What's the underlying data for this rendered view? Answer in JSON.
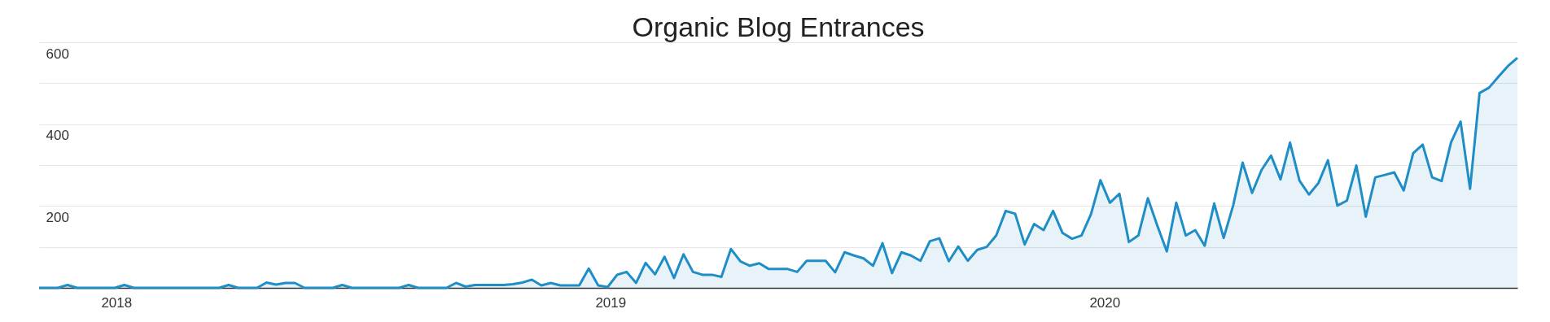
{
  "chart_data": {
    "type": "area",
    "title": "Organic Blog Entrances",
    "x": [
      "2017-11-05",
      "2017-11-12",
      "2017-11-19",
      "2017-11-26",
      "2017-12-03",
      "2017-12-10",
      "2017-12-17",
      "2017-12-24",
      "2017-12-31",
      "2018-01-07",
      "2018-01-14",
      "2018-01-21",
      "2018-01-28",
      "2018-02-04",
      "2018-02-11",
      "2018-02-18",
      "2018-02-25",
      "2018-03-04",
      "2018-03-11",
      "2018-03-18",
      "2018-03-25",
      "2018-04-01",
      "2018-04-08",
      "2018-04-15",
      "2018-04-22",
      "2018-04-29",
      "2018-05-06",
      "2018-05-13",
      "2018-05-20",
      "2018-05-27",
      "2018-06-03",
      "2018-06-10",
      "2018-06-17",
      "2018-06-24",
      "2018-07-01",
      "2018-07-08",
      "2018-07-15",
      "2018-07-22",
      "2018-07-29",
      "2018-08-05",
      "2018-08-12",
      "2018-08-19",
      "2018-08-26",
      "2018-09-02",
      "2018-09-09",
      "2018-09-16",
      "2018-09-23",
      "2018-09-30",
      "2018-10-07",
      "2018-10-14",
      "2018-10-21",
      "2018-10-28",
      "2018-11-04",
      "2018-11-11",
      "2018-11-18",
      "2018-11-25",
      "2018-12-02",
      "2018-12-09",
      "2018-12-16",
      "2018-12-23",
      "2018-12-30",
      "2019-01-06",
      "2019-01-13",
      "2019-01-20",
      "2019-01-27",
      "2019-02-03",
      "2019-02-10",
      "2019-02-17",
      "2019-02-24",
      "2019-03-03",
      "2019-03-10",
      "2019-03-17",
      "2019-03-24",
      "2019-03-31",
      "2019-04-07",
      "2019-04-14",
      "2019-04-21",
      "2019-04-28",
      "2019-05-05",
      "2019-05-12",
      "2019-05-19",
      "2019-05-26",
      "2019-06-02",
      "2019-06-09",
      "2019-06-16",
      "2019-06-23",
      "2019-06-30",
      "2019-07-07",
      "2019-07-14",
      "2019-07-21",
      "2019-07-28",
      "2019-08-04",
      "2019-08-11",
      "2019-08-18",
      "2019-08-25",
      "2019-09-01",
      "2019-09-08",
      "2019-09-15",
      "2019-09-22",
      "2019-09-29",
      "2019-10-06",
      "2019-10-13",
      "2019-10-20",
      "2019-10-27",
      "2019-11-03",
      "2019-11-10",
      "2019-11-17",
      "2019-11-24",
      "2019-12-01",
      "2019-12-08",
      "2019-12-15",
      "2019-12-22",
      "2019-12-29",
      "2020-01-05",
      "2020-01-12",
      "2020-01-19",
      "2020-01-26",
      "2020-02-02",
      "2020-02-09",
      "2020-02-16",
      "2020-02-23",
      "2020-03-01",
      "2020-03-08",
      "2020-03-15",
      "2020-03-22",
      "2020-03-29",
      "2020-04-05",
      "2020-04-12",
      "2020-04-19",
      "2020-04-26",
      "2020-05-03",
      "2020-05-10",
      "2020-05-17",
      "2020-05-24",
      "2020-05-31",
      "2020-06-07",
      "2020-06-14",
      "2020-06-21",
      "2020-06-28",
      "2020-07-05",
      "2020-07-12",
      "2020-07-19",
      "2020-07-26",
      "2020-08-02",
      "2020-08-09",
      "2020-08-16",
      "2020-08-23",
      "2020-08-30",
      "2020-09-06",
      "2020-09-13",
      "2020-09-20",
      "2020-09-27",
      "2020-10-04",
      "2020-10-11",
      "2020-10-18",
      "2020-10-25",
      "2020-11-01"
    ],
    "series": [
      {
        "color": "#1f8dc6",
        "values": [
          0,
          0,
          0,
          7,
          0,
          0,
          0,
          0,
          0,
          7,
          0,
          0,
          0,
          0,
          0,
          0,
          0,
          0,
          0,
          0,
          7,
          0,
          0,
          0,
          13,
          8,
          12,
          12,
          0,
          0,
          0,
          0,
          7,
          0,
          0,
          0,
          0,
          0,
          0,
          7,
          0,
          0,
          0,
          0,
          12,
          3,
          7,
          7,
          7,
          7,
          9,
          13,
          20,
          6,
          12,
          6,
          6,
          6,
          47,
          6,
          2,
          32,
          39,
          12,
          61,
          33,
          76,
          24,
          82,
          39,
          32,
          32,
          27,
          95,
          65,
          54,
          60,
          46,
          46,
          46,
          39,
          66,
          66,
          66,
          38,
          87,
          79,
          72,
          54,
          109,
          36,
          87,
          79,
          66,
          114,
          121,
          65,
          101,
          66,
          93,
          100,
          128,
          188,
          181,
          106,
          156,
          141,
          188,
          134,
          120,
          128,
          180,
          263,
          208,
          230,
          112,
          128,
          219,
          152,
          89,
          208,
          128,
          141,
          103,
          206,
          122,
          201,
          306,
          232,
          288,
          323,
          265,
          355,
          262,
          228,
          256,
          312,
          201,
          213,
          299,
          174,
          270,
          276,
          282,
          238,
          329,
          350,
          270,
          261,
          356,
          406,
          242,
          476,
          489,
          516,
          542,
          562
        ]
      }
    ],
    "xlim": [
      "2017-11-05",
      "2020-11-01"
    ],
    "xticks": [
      {
        "value": "2018-01-01",
        "label": "2018"
      },
      {
        "value": "2019-01-01",
        "label": "2019"
      },
      {
        "value": "2020-01-01",
        "label": "2020"
      }
    ],
    "ylim": [
      0,
      600
    ],
    "yticks": [
      {
        "value": 0,
        "label": null
      },
      {
        "value": 100,
        "label": null
      },
      200,
      {
        "value": 300,
        "label": null
      },
      400,
      {
        "value": 500,
        "label": null
      },
      600
    ],
    "grid": "y"
  }
}
